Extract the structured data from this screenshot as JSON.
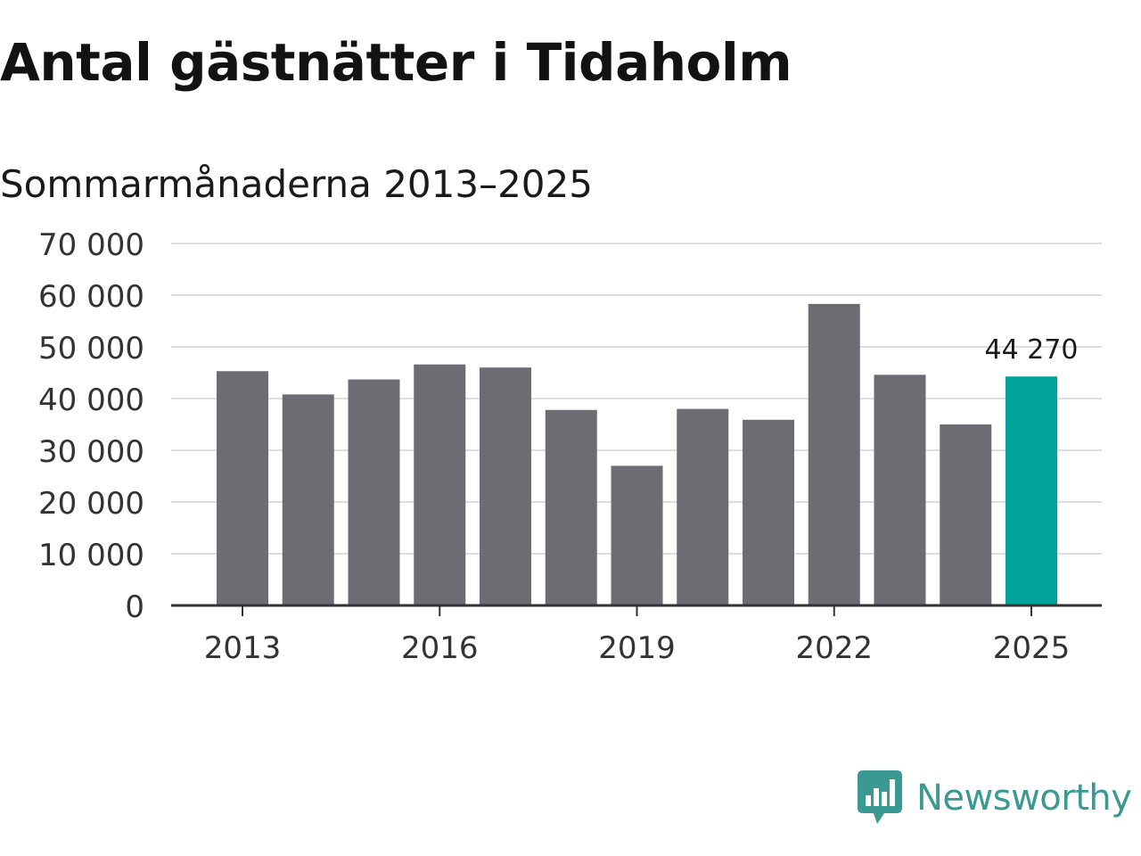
{
  "title": "Antal gästnätter i Tidaholm",
  "subtitle": "Sommarmånaderna 2013–2025",
  "brand": {
    "name": "Newsworthy",
    "color": "#3a9a92",
    "icon": "newsworthy-logo-icon"
  },
  "colors": {
    "bar": "#6d6c72",
    "highlight": "#00a39a",
    "grid": "#dedede",
    "axis": "#333333",
    "tick_text": "#333333"
  },
  "chart_data": {
    "type": "bar",
    "categories": [
      "2013",
      "2014",
      "2015",
      "2016",
      "2017",
      "2018",
      "2019",
      "2020",
      "2021",
      "2022",
      "2023",
      "2024",
      "2025"
    ],
    "values": [
      45300,
      40800,
      43700,
      46600,
      46000,
      37800,
      27000,
      38000,
      35900,
      58300,
      44600,
      35000,
      44270
    ],
    "highlight_index": 12,
    "data_label": "44 270",
    "ylim": [
      0,
      70000
    ],
    "yticks": [
      0,
      10000,
      20000,
      30000,
      40000,
      50000,
      60000,
      70000
    ],
    "ytick_labels": [
      "0",
      "10 000",
      "20 000",
      "30 000",
      "40 000",
      "50 000",
      "60 000",
      "70 000"
    ],
    "xtick_labels": [
      "2013",
      "2016",
      "2019",
      "2022",
      "2025"
    ],
    "xtick_indices": [
      0,
      3,
      6,
      9,
      12
    ],
    "grid": true,
    "xlabel": "",
    "ylabel": ""
  }
}
